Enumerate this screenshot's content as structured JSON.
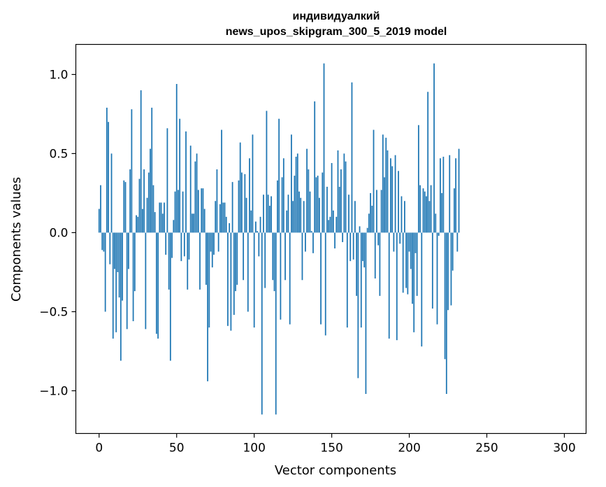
{
  "chart_data": {
    "type": "bar",
    "title_lines": [
      "индивидуалкий",
      "news_upos_skipgram_300_5_2019 model"
    ],
    "xlabel": "Vector components",
    "ylabel": "Components values",
    "xlim": [
      -15,
      314
    ],
    "ylim": [
      -1.27,
      1.19
    ],
    "x_ticks": [
      0,
      50,
      100,
      150,
      200,
      250,
      300
    ],
    "x_tick_labels": [
      "0",
      "50",
      "100",
      "150",
      "200",
      "250",
      "300"
    ],
    "y_ticks": [
      1.0,
      0.5,
      0.0,
      -0.5,
      -1.0
    ],
    "y_tick_labels": [
      "1.0",
      "0.5",
      "0.0",
      "−0.5",
      "−1.0"
    ],
    "bar_color": "#1f77b4",
    "grid": false,
    "values": [
      0.15,
      0.3,
      -0.11,
      -0.12,
      -0.5,
      0.79,
      0.7,
      -0.2,
      0.5,
      -0.67,
      -0.23,
      -0.63,
      -0.25,
      -0.41,
      -0.81,
      -0.43,
      0.33,
      0.32,
      -0.61,
      -0.23,
      0.4,
      0.78,
      -0.56,
      -0.37,
      0.11,
      0.1,
      0.34,
      0.9,
      0.15,
      0.4,
      -0.61,
      0.22,
      0.38,
      0.53,
      0.79,
      0.3,
      0.13,
      -0.64,
      -0.67,
      0.19,
      0.19,
      0.12,
      0.19,
      -0.14,
      0.66,
      -0.36,
      -0.81,
      -0.16,
      0.08,
      0.26,
      0.94,
      0.27,
      0.72,
      -0.18,
      0.26,
      -0.15,
      0.64,
      -0.36,
      -0.17,
      0.55,
      0.12,
      0.12,
      0.45,
      0.5,
      0.27,
      -0.36,
      0.28,
      0.28,
      0.15,
      -0.33,
      -0.94,
      -0.6,
      -0.12,
      -0.22,
      -0.14,
      0.2,
      0.4,
      -0.12,
      0.18,
      0.65,
      0.19,
      0.19,
      0.1,
      -0.59,
      0.06,
      -0.62,
      0.32,
      -0.52,
      -0.37,
      -0.33,
      0.33,
      0.57,
      0.38,
      -0.3,
      0.37,
      0.22,
      -0.5,
      0.47,
      0.14,
      0.62,
      -0.6,
      0.07,
      0.01,
      -0.15,
      0.1,
      -1.15,
      0.24,
      -0.35,
      0.77,
      0.24,
      0.17,
      0.23,
      -0.3,
      -0.37,
      -1.15,
      0.33,
      0.72,
      -0.55,
      0.35,
      0.47,
      -0.3,
      0.14,
      0.24,
      -0.58,
      0.62,
      0.2,
      0.36,
      0.48,
      0.5,
      0.26,
      0.22,
      -0.3,
      0.2,
      -0.12,
      0.53,
      0.4,
      0.26,
      0.01,
      -0.13,
      0.83,
      0.35,
      0.36,
      0.22,
      -0.58,
      0.38,
      1.07,
      -0.65,
      0.29,
      0.08,
      0.1,
      0.44,
      0.14,
      -0.1,
      0.1,
      0.52,
      0.29,
      0.4,
      -0.06,
      0.5,
      0.45,
      -0.6,
      0.24,
      -0.18,
      0.95,
      -0.17,
      0.2,
      -0.4,
      -0.92,
      0.04,
      -0.6,
      -0.18,
      -0.22,
      -1.02,
      0.03,
      0.12,
      0.25,
      0.17,
      0.65,
      -0.29,
      0.27,
      -0.08,
      -0.4,
      0.27,
      0.62,
      0.35,
      0.6,
      0.52,
      -0.67,
      0.47,
      0.42,
      -0.12,
      0.49,
      -0.68,
      0.39,
      -0.07,
      0.23,
      -0.38,
      0.2,
      -0.35,
      -0.39,
      -0.12,
      -0.23,
      -0.45,
      -0.63,
      -0.13,
      -0.4,
      0.68,
      0.3,
      -0.72,
      0.28,
      0.26,
      0.23,
      0.89,
      0.2,
      0.3,
      -0.48,
      1.07,
      0.12,
      -0.58,
      -0.02,
      0.47,
      0.25,
      0.48,
      -0.8,
      -1.02,
      -0.49,
      0.49,
      -0.46,
      -0.24,
      0.28,
      0.47,
      -0.12,
      0.53
    ]
  }
}
